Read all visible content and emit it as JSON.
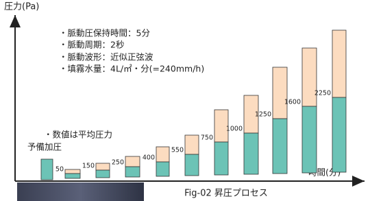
{
  "y_axis_label": "圧力(Pa)",
  "x_axis_label": "時間(分)",
  "caption": "Fig-02 昇圧プロセス",
  "notes": [
    "・脈動圧保持時間：5分",
    "・脈動周期：2秒",
    "・脈動波形：近似正弦波",
    "・填霧水量：4L/㎡・分(=240mm/h)"
  ],
  "average_note": "・数値は平均圧力",
  "pre_pressure_label": "予備加圧",
  "values": [
    50,
    150,
    250,
    400,
    550,
    750,
    1000,
    1250,
    1600,
    2250
  ]
}
